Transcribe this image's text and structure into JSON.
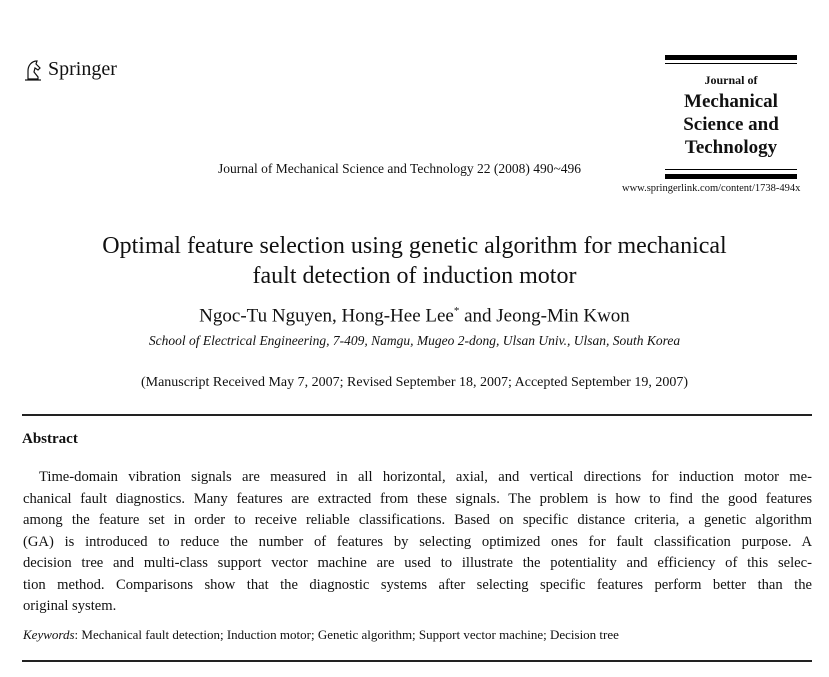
{
  "publisher": {
    "name": "Springer",
    "logo_icon": "springer-horse-icon"
  },
  "journal_box": {
    "line1": "Journal of",
    "line2": "Mechanical",
    "line3": "Science and",
    "line4": "Technology"
  },
  "citation": "Journal of Mechanical Science and Technology 22 (2008) 490~496",
  "url": "www.springerlink.com/content/1738-494x",
  "title": {
    "line1": "Optimal feature selection using genetic algorithm for mechanical",
    "line2": "fault detection of induction motor"
  },
  "authors": {
    "a1": "Ngoc-Tu Nguyen, ",
    "a2": "Hong-Hee Lee",
    "mark": "*",
    "a3": " and Jeong-Min Kwon"
  },
  "affiliation": "School of Electrical Engineering, 7-409, Namgu, Mugeo 2-dong, Ulsan Univ., Ulsan, South Korea",
  "dates": "(Manuscript Received May 7, 2007; Revised September 18, 2007; Accepted September 19, 2007)",
  "abstract": {
    "heading": "Abstract",
    "lines": [
      "Time-domain vibration signals are measured in all horizontal, axial, and vertical directions for induction motor me-",
      "chanical fault diagnostics. Many features are extracted from these signals. The problem is how to find the good features",
      "among the feature set in order to receive reliable classifications. Based on specific distance criteria, a genetic algorithm",
      "(GA) is introduced to reduce the number of features by selecting optimized ones for fault classification purpose. A",
      "decision tree and multi-class support vector machine are used to illustrate the potentiality and efficiency of this selec-",
      "tion method. Comparisons show that the diagnostic systems after selecting specific features perform better than the",
      "original system."
    ]
  },
  "keywords": {
    "label": "Keywords",
    "text": ": Mechanical fault detection; Induction motor; Genetic algorithm; Support vector machine; Decision tree"
  }
}
